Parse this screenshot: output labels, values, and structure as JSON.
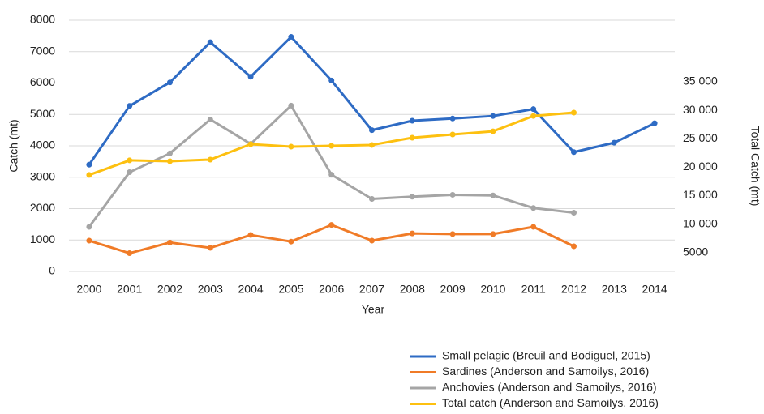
{
  "chart_data": {
    "type": "line",
    "x_label": "Year",
    "y_label": "Catch (mt)",
    "y2_label": "Total Catch (mt)",
    "categories": [
      "2000",
      "2001",
      "2002",
      "2003",
      "2004",
      "2005",
      "2006",
      "2007",
      "2008",
      "2009",
      "2010",
      "2011",
      "2012",
      "2013",
      "2014"
    ],
    "ylim": [
      0,
      8000
    ],
    "yticks": [
      0,
      1000,
      2000,
      3000,
      4000,
      5000,
      6000,
      7000,
      8000
    ],
    "y2lim": [
      1700,
      45800
    ],
    "y2ticks": [
      5000,
      {
        "value": 10000,
        "label": "10 000"
      },
      {
        "value": 15000,
        "label": "15 000"
      },
      {
        "value": 20000,
        "label": "20 000"
      },
      {
        "value": 25000,
        "label": "25 000"
      },
      {
        "value": 30000,
        "label": "30 000"
      },
      {
        "value": 35000,
        "label": "35 000"
      }
    ],
    "grid": true,
    "legend": "bottom-right",
    "series": [
      {
        "name": "Small pelagic (Breuil and Bodiguel, 2015)",
        "color": "#2e6bc4",
        "values": [
          3400,
          5270,
          6020,
          7300,
          6200,
          7470,
          6080,
          4500,
          4800,
          4870,
          4950,
          5170,
          3800,
          4100,
          4720
        ]
      },
      {
        "name": "Sardines (Anderson and Samoilys, 2016)",
        "color": "#f07b27",
        "values": [
          980,
          580,
          920,
          750,
          1160,
          950,
          1480,
          980,
          1210,
          1190,
          1190,
          1420,
          800,
          null,
          null
        ]
      },
      {
        "name": "Anchovies (Anderson and Samoilys, 2016)",
        "color": "#a5a5a5",
        "values": [
          1420,
          3160,
          3760,
          4840,
          4060,
          5280,
          3080,
          2310,
          2380,
          2440,
          2420,
          2020,
          1870,
          null,
          null
        ]
      },
      {
        "name": "Total catch (Anderson and Samoilys, 2016)",
        "color": "#fdc010",
        "axis": "y2",
        "values": [
          18640,
          21200,
          21050,
          21330,
          24030,
          23600,
          23750,
          23900,
          25170,
          25740,
          26300,
          29000,
          29580,
          null,
          null
        ]
      }
    ]
  }
}
